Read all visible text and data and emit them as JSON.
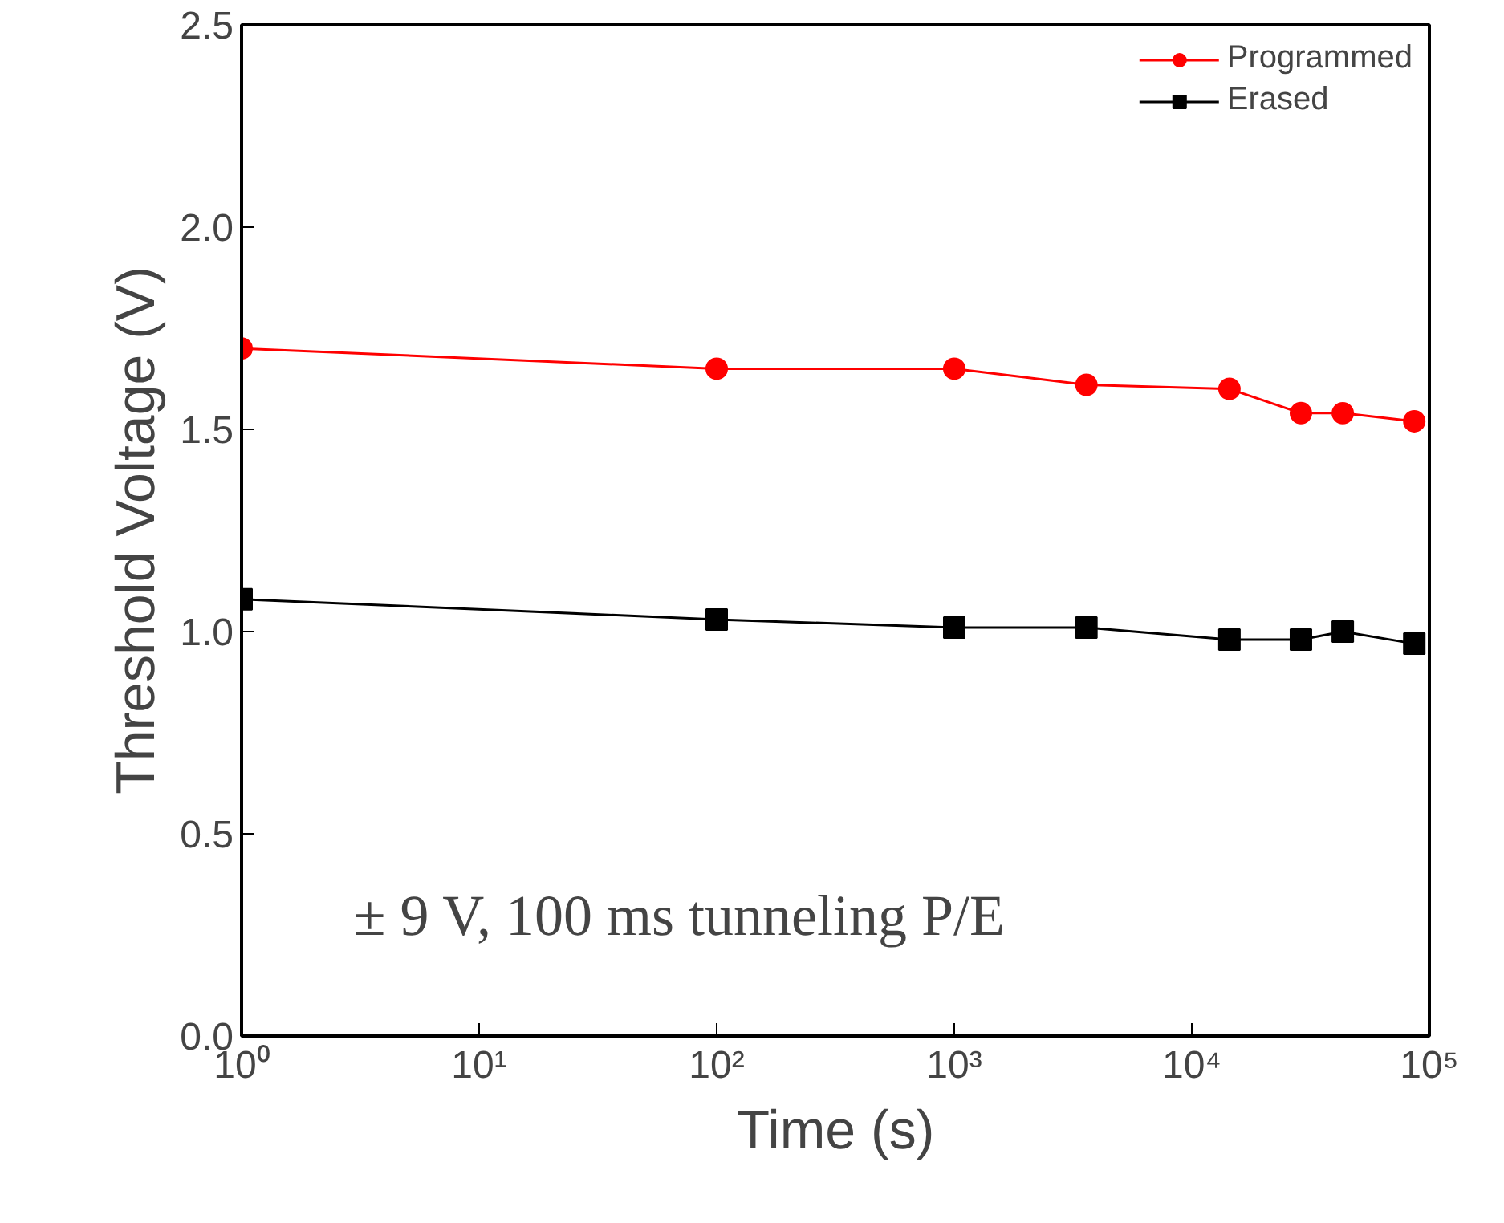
{
  "chart_data": {
    "type": "line",
    "xlabel": "Time (s)",
    "ylabel": "Threshold Voltage (V)",
    "log": "x",
    "x": [
      1,
      100,
      1000,
      3600,
      14400,
      28800,
      43200,
      86400
    ],
    "series": [
      {
        "name": "Programmed",
        "color": "#ff0000",
        "marker": "circle",
        "values": [
          1.7,
          1.65,
          1.65,
          1.61,
          1.6,
          1.54,
          1.54,
          1.52
        ]
      },
      {
        "name": "Erased",
        "color": "#000000",
        "marker": "square",
        "values": [
          1.08,
          1.03,
          1.01,
          1.01,
          0.98,
          0.98,
          1.0,
          0.97
        ]
      }
    ],
    "xlim": [
      1,
      100000
    ],
    "xticks": [
      {
        "value": 1,
        "label": "10⁰"
      },
      {
        "value": 10,
        "label": "10¹"
      },
      {
        "value": 100,
        "label": "10²"
      },
      {
        "value": 1000,
        "label": "10³"
      },
      {
        "value": 10000,
        "label": "10⁴"
      },
      {
        "value": 100000,
        "label": "10⁵"
      }
    ],
    "ylim": [
      0,
      2.5
    ],
    "yticks": [
      {
        "value": 0,
        "label": "0.0"
      },
      {
        "value": 0.5,
        "label": "0.5"
      },
      {
        "value": 1,
        "label": "1.0"
      },
      {
        "value": 1.5,
        "label": "1.5"
      },
      {
        "value": 2,
        "label": "2.0"
      },
      {
        "value": 2.5,
        "label": "2.5"
      }
    ],
    "grid": false,
    "legend": "top right",
    "line_style": "solid",
    "annotations": [
      "± 9 V, 100 ms tunneling P/E"
    ]
  }
}
